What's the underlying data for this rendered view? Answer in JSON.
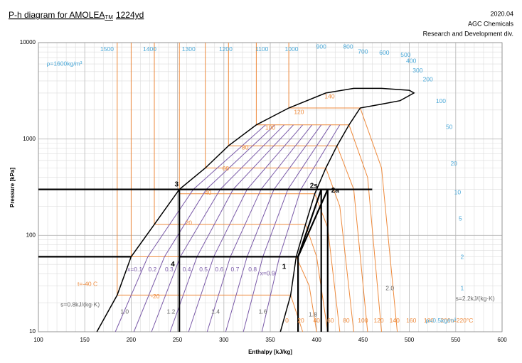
{
  "chart_data": {
    "type": "line",
    "title": "P-h diagram for AMOLEA",
    "title_sub": "TM",
    "title_suffix": "1224yd",
    "corner_lines": [
      "2020.04",
      "AGC Chemicals",
      "Research and Development div."
    ],
    "xlabel": "Enthalpy [kJ/kg]",
    "ylabel": "Pressure [kPa]",
    "xlim": [
      100,
      600
    ],
    "xticks": [
      100,
      150,
      200,
      250,
      300,
      350,
      400,
      450,
      500,
      550,
      600
    ],
    "ylim": [
      10,
      10000
    ],
    "yticks": [
      10,
      100,
      1000,
      10000
    ],
    "ylog": true,
    "grid": true,
    "minor_grid": true,
    "xgrid_step": 10,
    "series": [
      {
        "color": "#ee8a3c",
        "width": 1,
        "x": [
          185,
          185,
          372,
          385
        ],
        "y": [
          10000,
          24,
          24,
          10
        ]
      },
      {
        "color": "#ee8a3c",
        "width": 1,
        "x": [
          200,
          200,
          378,
          392,
          400
        ],
        "y": [
          10000,
          60,
          60,
          30,
          10
        ]
      },
      {
        "color": "#ee8a3c",
        "width": 1,
        "x": [
          225,
          225,
          388,
          400,
          412
        ],
        "y": [
          10000,
          130,
          130,
          60,
          10
        ]
      },
      {
        "color": "#ee8a3c",
        "width": 1,
        "x": [
          252,
          252,
          398,
          412,
          425
        ],
        "y": [
          10000,
          270,
          270,
          120,
          10
        ]
      },
      {
        "color": "#ee8a3c",
        "width": 1,
        "x": [
          280,
          280,
          410,
          425,
          440
        ],
        "y": [
          10000,
          500,
          500,
          200,
          10
        ]
      },
      {
        "color": "#ee8a3c",
        "width": 1,
        "x": [
          305,
          305,
          422,
          440,
          455
        ],
        "y": [
          10000,
          850,
          850,
          300,
          10
        ]
      },
      {
        "color": "#ee8a3c",
        "width": 1,
        "x": [
          335,
          335,
          435,
          455,
          470
        ],
        "y": [
          10000,
          1400,
          1400,
          400,
          10
        ]
      },
      {
        "color": "#ee8a3c",
        "width": 1,
        "x": [
          370,
          370,
          447,
          470,
          487
        ],
        "y": [
          10000,
          2100,
          2100,
          500,
          10
        ]
      },
      {
        "color": "#7a5aa8",
        "width": 1,
        "x": [
          345,
          267,
          218,
          183
        ],
        "y": [
          1400,
          300,
          60,
          10
        ]
      },
      {
        "color": "#7a5aa8",
        "width": 1,
        "x": [
          355,
          281,
          236,
          203
        ],
        "y": [
          1400,
          300,
          60,
          10
        ]
      },
      {
        "color": "#7a5aa8",
        "width": 1,
        "x": [
          365,
          296,
          253,
          222
        ],
        "y": [
          1400,
          300,
          60,
          10
        ]
      },
      {
        "color": "#7a5aa8",
        "width": 1,
        "x": [
          375,
          310,
          271,
          242
        ],
        "y": [
          1400,
          300,
          60,
          10
        ]
      },
      {
        "color": "#7a5aa8",
        "width": 1,
        "x": [
          385,
          325,
          289,
          262
        ],
        "y": [
          1400,
          300,
          60,
          10
        ]
      },
      {
        "color": "#7a5aa8",
        "width": 1,
        "x": [
          395,
          340,
          307,
          282
        ],
        "y": [
          1400,
          300,
          60,
          10
        ]
      },
      {
        "color": "#7a5aa8",
        "width": 1,
        "x": [
          405,
          354,
          325,
          302
        ],
        "y": [
          1400,
          300,
          60,
          10
        ]
      },
      {
        "color": "#7a5aa8",
        "width": 1,
        "x": [
          415,
          369,
          342,
          321
        ],
        "y": [
          1400,
          300,
          60,
          10
        ]
      },
      {
        "color": "#7a5aa8",
        "width": 1,
        "x": [
          425,
          383,
          360,
          341
        ],
        "y": [
          1400,
          300,
          60,
          10
        ]
      },
      {
        "color": "#000000",
        "width": 1.5,
        "x": [
          163,
          185,
          200,
          225,
          252,
          280,
          305,
          335,
          370,
          410,
          440,
          470,
          500,
          505,
          490,
          470,
          447,
          435,
          422,
          410,
          398,
          388,
          378,
          372,
          361
        ],
        "y": [
          10,
          24,
          60,
          130,
          300,
          500,
          850,
          1400,
          2100,
          3000,
          3350,
          3350,
          3200,
          3000,
          2500,
          2300,
          2100,
          1400,
          850,
          500,
          270,
          130,
          60,
          24,
          10
        ]
      },
      {
        "color": "#000000",
        "width": 2.2,
        "x": [
          252,
          380,
          412,
          252,
          252
        ],
        "y": [
          60,
          60,
          300,
          300,
          60
        ]
      },
      {
        "color": "#000000",
        "width": 2.2,
        "x": [
          380,
          405
        ],
        "y": [
          60,
          300
        ]
      },
      {
        "color": "#000000",
        "width": 2.2,
        "x": [
          100,
          252,
          null,
          100,
          200,
          null,
          252,
          252,
          null,
          380,
          380,
          null,
          405,
          405,
          null,
          412,
          412,
          null,
          252,
          460
        ],
        "y": [
          300,
          300,
          null,
          60,
          60,
          null,
          60,
          10,
          null,
          60,
          10,
          null,
          300,
          10,
          null,
          300,
          10,
          null,
          300,
          300
        ]
      }
    ],
    "annotations": [
      {
        "text": "1",
        "x": 365,
        "y": 47,
        "color": "#000000",
        "bold": true
      },
      {
        "text": "2s",
        "x": 397,
        "y": 325,
        "color": "#000000",
        "bold": true
      },
      {
        "text": "2a",
        "x": 420,
        "y": 290,
        "color": "#000000",
        "bold": true
      },
      {
        "text": "3",
        "x": 249,
        "y": 335,
        "color": "#000000",
        "bold": true
      },
      {
        "text": "4",
        "x": 245,
        "y": 50,
        "color": "#000000",
        "bold": true
      },
      {
        "text": "140",
        "x": 414,
        "y": 2750,
        "color": "#ee8a3c"
      },
      {
        "text": "120",
        "x": 381,
        "y": 1890,
        "color": "#ee8a3c"
      },
      {
        "text": "100",
        "x": 350,
        "y": 1300,
        "color": "#ee8a3c"
      },
      {
        "text": "80",
        "x": 323,
        "y": 810,
        "color": "#ee8a3c"
      },
      {
        "text": "60",
        "x": 302,
        "y": 490,
        "color": "#ee8a3c"
      },
      {
        "text": "40",
        "x": 283,
        "y": 275,
        "color": "#ee8a3c"
      },
      {
        "text": "20",
        "x": 262,
        "y": 134,
        "color": "#ee8a3c"
      },
      {
        "text": "-20",
        "x": 226,
        "y": 23,
        "color": "#ee8a3c"
      },
      {
        "text": "t=-40 C",
        "x": 153,
        "y": 31,
        "color": "#ee8a3c"
      },
      {
        "text": "0",
        "x": 368,
        "y": 13,
        "color": "#ee8a3c"
      },
      {
        "text": "20",
        "x": 383,
        "y": 13,
        "color": "#ee8a3c"
      },
      {
        "text": "40",
        "x": 400,
        "y": 13,
        "color": "#ee8a3c"
      },
      {
        "text": "60",
        "x": 415,
        "y": 13,
        "color": "#ee8a3c"
      },
      {
        "text": "80",
        "x": 432,
        "y": 13,
        "color": "#ee8a3c"
      },
      {
        "text": "100",
        "x": 450,
        "y": 13,
        "color": "#ee8a3c"
      },
      {
        "text": "120",
        "x": 467,
        "y": 13,
        "color": "#ee8a3c"
      },
      {
        "text": "140",
        "x": 484,
        "y": 13,
        "color": "#ee8a3c"
      },
      {
        "text": "160",
        "x": 502,
        "y": 13,
        "color": "#ee8a3c"
      },
      {
        "text": "180",
        "x": 521,
        "y": 13,
        "color": "#ee8a3c"
      },
      {
        "text": "200",
        "x": 539,
        "y": 13,
        "color": "#ee8a3c"
      },
      {
        "text": "t=220°C",
        "x": 557,
        "y": 13,
        "color": "#ee8a3c"
      },
      {
        "text": "ρ=1600kg/m³",
        "x": 128,
        "y": 6000,
        "color": "#4aa8d8"
      },
      {
        "text": "1500",
        "x": 174,
        "y": 8500,
        "color": "#4aa8d8"
      },
      {
        "text": "1400",
        "x": 220,
        "y": 8500,
        "color": "#4aa8d8"
      },
      {
        "text": "1300",
        "x": 262,
        "y": 8500,
        "color": "#4aa8d8"
      },
      {
        "text": "1200",
        "x": 302,
        "y": 8500,
        "color": "#4aa8d8"
      },
      {
        "text": "1100",
        "x": 341,
        "y": 8500,
        "color": "#4aa8d8"
      },
      {
        "text": "1000",
        "x": 373,
        "y": 8500,
        "color": "#4aa8d8"
      },
      {
        "text": "900",
        "x": 405,
        "y": 9000,
        "color": "#4aa8d8"
      },
      {
        "text": "800",
        "x": 434,
        "y": 9000,
        "color": "#4aa8d8"
      },
      {
        "text": "700",
        "x": 450,
        "y": 8000,
        "color": "#4aa8d8"
      },
      {
        "text": "600",
        "x": 473,
        "y": 7800,
        "color": "#4aa8d8"
      },
      {
        "text": "500",
        "x": 496,
        "y": 7400,
        "color": "#4aa8d8"
      },
      {
        "text": "400",
        "x": 502,
        "y": 6400,
        "color": "#4aa8d8"
      },
      {
        "text": "300",
        "x": 509,
        "y": 5100,
        "color": "#4aa8d8"
      },
      {
        "text": "200",
        "x": 520,
        "y": 4130,
        "color": "#4aa8d8"
      },
      {
        "text": "100",
        "x": 534,
        "y": 2450,
        "color": "#4aa8d8"
      },
      {
        "text": "50",
        "x": 543,
        "y": 1320,
        "color": "#4aa8d8"
      },
      {
        "text": "20",
        "x": 548,
        "y": 550,
        "color": "#4aa8d8"
      },
      {
        "text": "10",
        "x": 552,
        "y": 278,
        "color": "#4aa8d8"
      },
      {
        "text": "5",
        "x": 555,
        "y": 148,
        "color": "#4aa8d8"
      },
      {
        "text": "2",
        "x": 557,
        "y": 59,
        "color": "#4aa8d8"
      },
      {
        "text": "1",
        "x": 557,
        "y": 28,
        "color": "#4aa8d8"
      },
      {
        "text": "ρ=0.5kg/m³",
        "x": 534,
        "y": 13,
        "color": "#4aa8d8"
      },
      {
        "text": "s=0.8kJ/(kg·K)",
        "x": 145,
        "y": 19,
        "color": "#666666"
      },
      {
        "text": "1.0",
        "x": 193,
        "y": 16,
        "color": "#666666"
      },
      {
        "text": "1.2",
        "x": 243,
        "y": 16,
        "color": "#666666"
      },
      {
        "text": "1.4",
        "x": 291,
        "y": 16,
        "color": "#666666"
      },
      {
        "text": "1.6",
        "x": 342,
        "y": 16,
        "color": "#666666"
      },
      {
        "text": "1.8",
        "x": 396,
        "y": 15,
        "color": "#666666"
      },
      {
        "text": "2.0",
        "x": 479,
        "y": 28,
        "color": "#666666"
      },
      {
        "text": "s=2.2kJ/(kg·K)",
        "x": 571,
        "y": 22,
        "color": "#666666"
      },
      {
        "text": "x=0.1",
        "x": 204,
        "y": 44,
        "color": "#7a5aa8"
      },
      {
        "text": "0.2",
        "x": 223,
        "y": 44,
        "color": "#7a5aa8"
      },
      {
        "text": "0.3",
        "x": 241,
        "y": 44,
        "color": "#7a5aa8"
      },
      {
        "text": "0.4",
        "x": 260,
        "y": 44,
        "color": "#7a5aa8"
      },
      {
        "text": "0.5",
        "x": 278,
        "y": 44,
        "color": "#7a5aa8"
      },
      {
        "text": "0.6",
        "x": 295,
        "y": 44,
        "color": "#7a5aa8"
      },
      {
        "text": "0.7",
        "x": 312,
        "y": 44,
        "color": "#7a5aa8"
      },
      {
        "text": "0.8",
        "x": 331,
        "y": 44,
        "color": "#7a5aa8"
      },
      {
        "text": "x=0.9",
        "x": 347,
        "y": 40,
        "color": "#7a5aa8"
      }
    ]
  }
}
